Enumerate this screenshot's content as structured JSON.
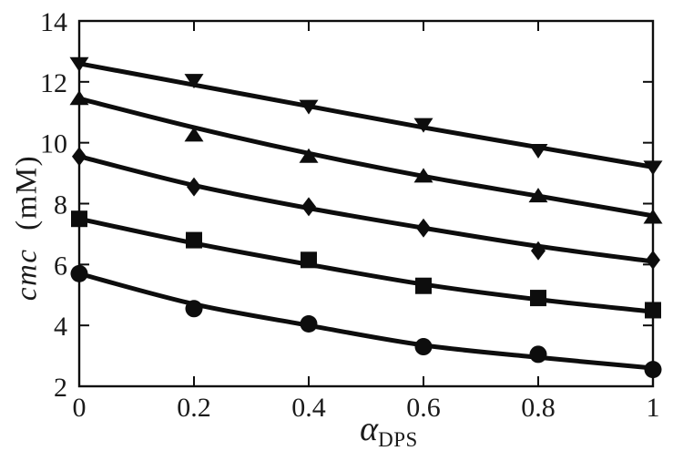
{
  "chart_data": {
    "type": "line",
    "title": "",
    "xlabel": "α_DPS",
    "ylabel": "cmc (mM)",
    "xlabel_parts": {
      "base": "α",
      "sub": "DPS"
    },
    "ylabel_parts": {
      "italic": "cmc",
      "unit": "(mM)"
    },
    "xlim": [
      0,
      1
    ],
    "ylim": [
      2,
      14
    ],
    "xticks": [
      0,
      0.2,
      0.4,
      0.6,
      0.8,
      1
    ],
    "yticks": [
      2,
      4,
      6,
      8,
      10,
      12,
      14
    ],
    "xtick_labels": [
      "0",
      "0.2",
      "0.4",
      "0.6",
      "0.8",
      "1"
    ],
    "ytick_labels": [
      "2",
      "4",
      "6",
      "8",
      "10",
      "12",
      "14"
    ],
    "grid": false,
    "legend": "none",
    "line_color": "#0d0d0d",
    "background": "#ffffff",
    "x": [
      0,
      0.2,
      0.4,
      0.6,
      0.8,
      1
    ],
    "series": [
      {
        "name": "series-1",
        "marker": "triangle-down",
        "values": [
          12.6,
          12.05,
          11.2,
          10.6,
          9.75,
          9.2
        ],
        "curve": [
          12.6,
          11.9,
          11.2,
          10.5,
          9.85,
          9.2
        ]
      },
      {
        "name": "series-2",
        "marker": "triangle-up",
        "values": [
          11.45,
          10.25,
          9.55,
          8.9,
          8.25,
          7.55
        ],
        "curve": [
          11.45,
          10.5,
          9.65,
          8.9,
          8.25,
          7.6
        ]
      },
      {
        "name": "series-3",
        "marker": "diamond",
        "values": [
          9.55,
          8.55,
          7.9,
          7.2,
          6.45,
          6.15
        ],
        "curve": [
          9.55,
          8.6,
          7.85,
          7.2,
          6.6,
          6.1
        ]
      },
      {
        "name": "series-4",
        "marker": "square",
        "values": [
          7.5,
          6.8,
          6.15,
          5.3,
          4.9,
          4.5
        ],
        "curve": [
          7.5,
          6.7,
          6.0,
          5.35,
          4.85,
          4.45
        ]
      },
      {
        "name": "series-5",
        "marker": "circle",
        "values": [
          5.7,
          4.55,
          4.05,
          3.3,
          3.05,
          2.55
        ],
        "curve": [
          5.7,
          4.7,
          4.0,
          3.35,
          2.95,
          2.6
        ]
      }
    ]
  }
}
